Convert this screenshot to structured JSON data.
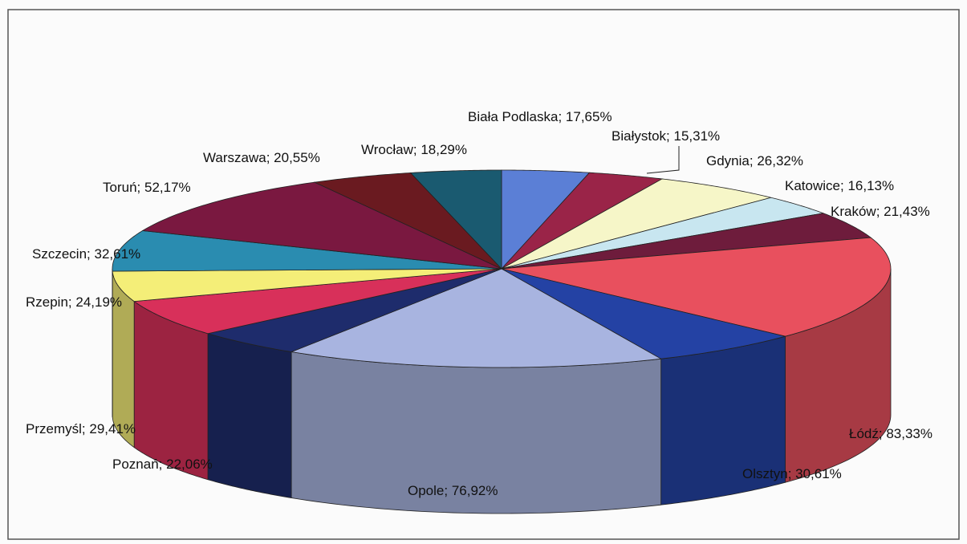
{
  "chart_data": {
    "type": "pie3d",
    "label_separator": "; ",
    "categories": [
      "Biała Podlaska",
      "Białystok",
      "Gdynia",
      "Katowice",
      "Kraków",
      "Łódź",
      "Olsztyn",
      "Opole",
      "Poznań",
      "Przemyśl",
      "Rzepin",
      "Szczecin",
      "Toruń",
      "Warszawa",
      "Wrocław"
    ],
    "values": [
      17.65,
      15.31,
      26.32,
      16.13,
      21.43,
      83.33,
      30.61,
      76.92,
      22.06,
      29.41,
      24.19,
      32.61,
      52.17,
      20.55,
      18.29
    ],
    "value_labels": [
      "17,65%",
      "15,31%",
      "26,32%",
      "16,13%",
      "21,43%",
      "83,33%",
      "30,61%",
      "76,92%",
      "22,06%",
      "29,41%",
      "24,19%",
      "32,61%",
      "52,17%",
      "20,55%",
      "18,29%"
    ],
    "colors": [
      "#5b7fd6",
      "#9a2448",
      "#f6f6c8",
      "#c8e6f0",
      "#6e1c3c",
      "#e8505e",
      "#2442a4",
      "#a8b4e0",
      "#1e2c6c",
      "#d8305a",
      "#f4ee78",
      "#2a8cb0",
      "#7a1840",
      "#6a1a20",
      "#1a5a70"
    ]
  }
}
